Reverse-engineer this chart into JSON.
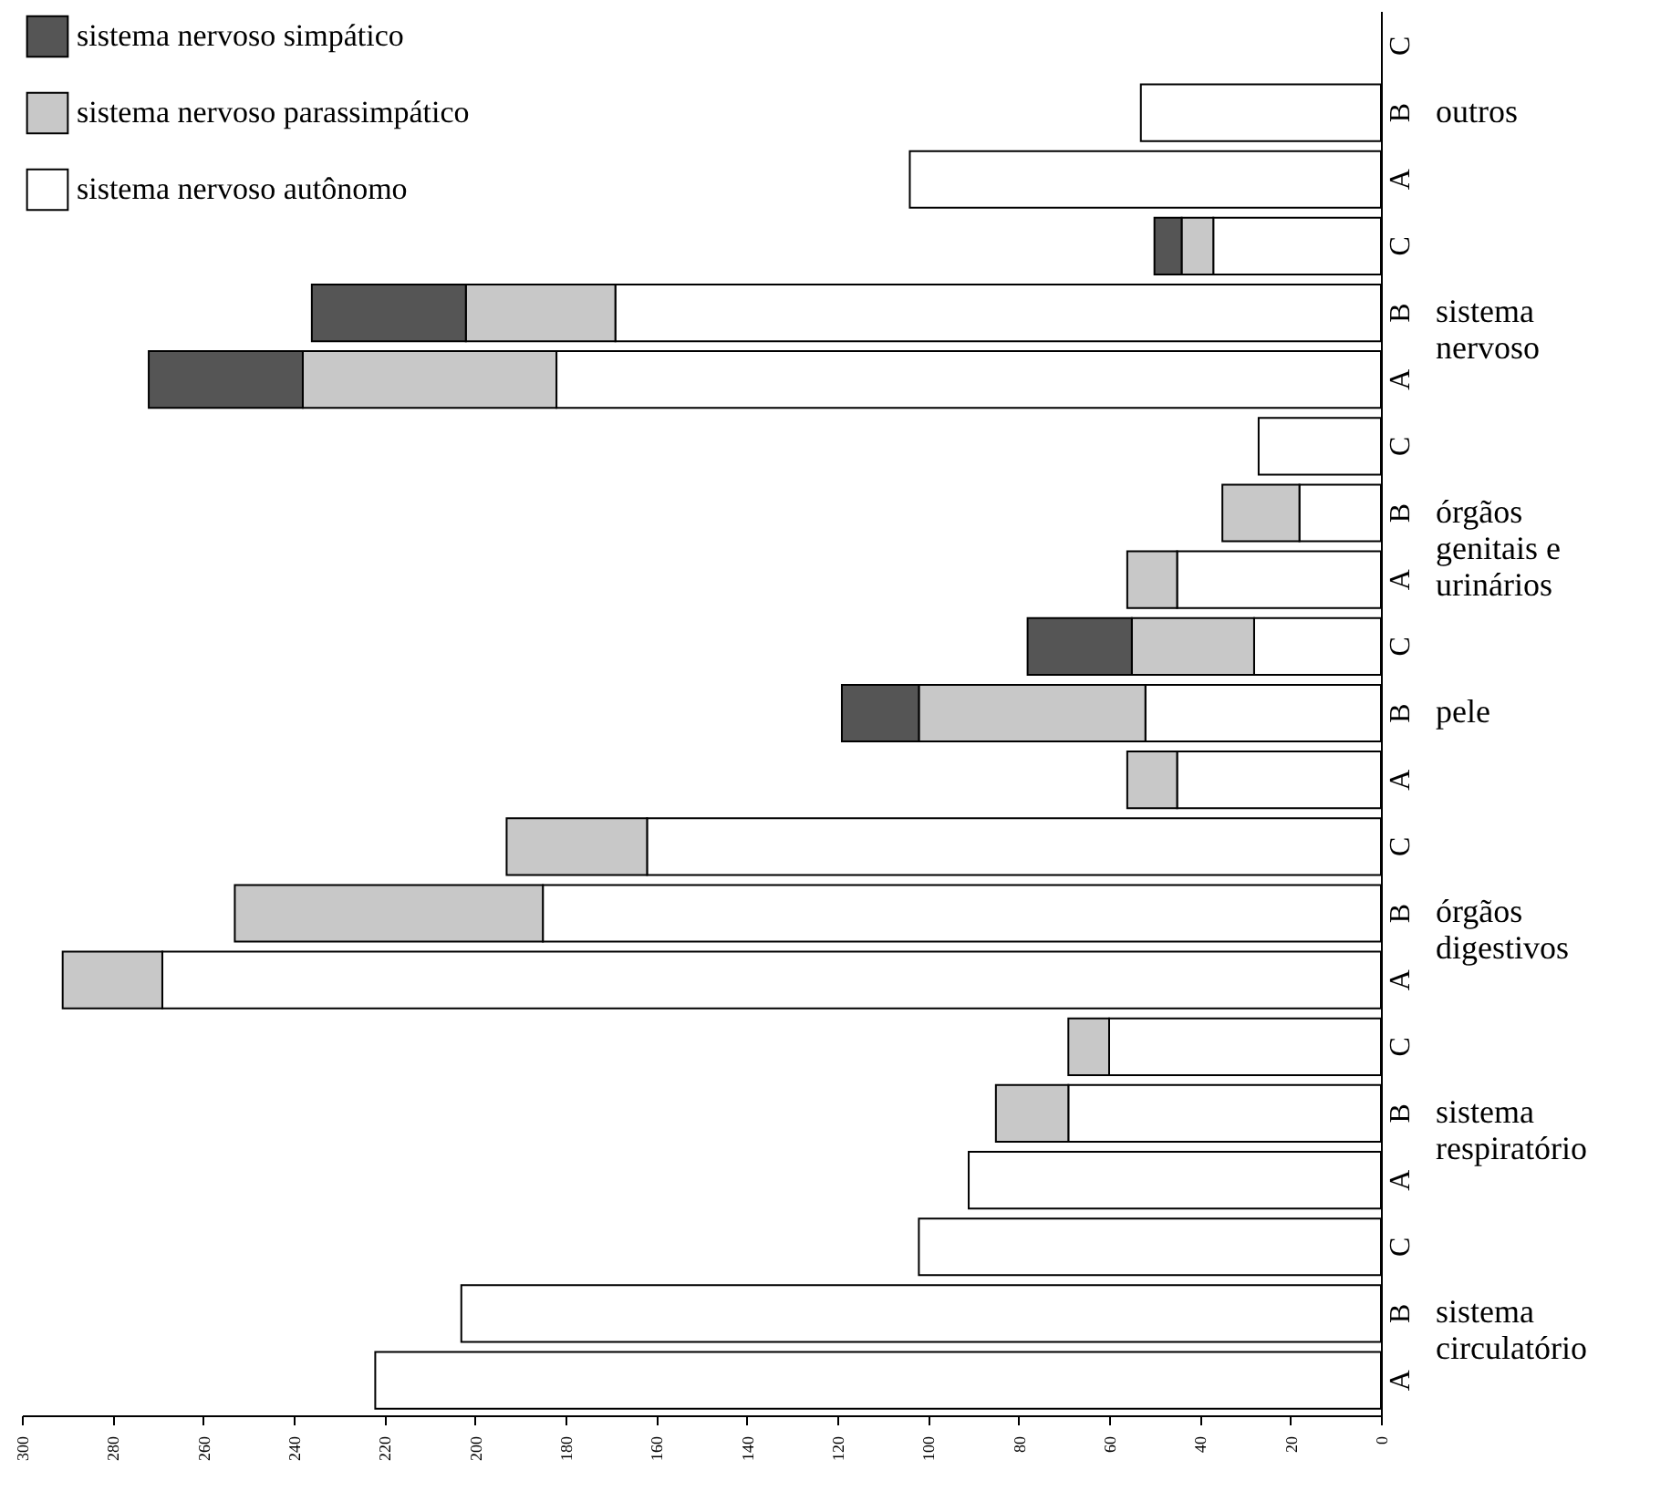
{
  "chart_data": {
    "type": "bar",
    "orientation": "horizontal",
    "stacked": true,
    "legend": "top left",
    "grid": false,
    "categories": [
      "C",
      "B",
      "A",
      "C",
      "B",
      "A",
      "C",
      "B",
      "A",
      "C",
      "B",
      "A",
      "C",
      "B",
      "A",
      "C",
      "B",
      "A",
      "C",
      "B",
      "A"
    ],
    "series": [
      {
        "name": "sistema nervoso autônomo",
        "color": "#ffffff",
        "values": [
          null,
          53,
          104,
          37,
          169,
          182,
          27,
          18,
          45,
          28,
          52,
          45,
          162,
          185,
          269,
          60,
          69,
          91,
          102,
          203,
          222
        ]
      },
      {
        "name": "sistema nervoso parassimpático",
        "color": "#c8c8c8",
        "values": [
          null,
          null,
          null,
          7,
          33,
          56,
          null,
          17,
          11,
          27,
          50,
          11,
          31,
          68,
          22,
          9,
          16,
          null,
          null,
          null,
          null
        ]
      },
      {
        "name": "sistema nervoso simpático",
        "color": "#555555",
        "values": [
          null,
          null,
          null,
          6,
          34,
          34,
          null,
          null,
          null,
          23,
          17,
          null,
          null,
          null,
          null,
          null,
          null,
          null,
          null,
          null,
          null
        ]
      }
    ],
    "xlim": [
      300,
      0
    ],
    "xticks": [
      0,
      20,
      40,
      60,
      80,
      100,
      120,
      140,
      160,
      180,
      200,
      220,
      240,
      260,
      280,
      300
    ],
    "annotations": [
      "outros",
      "sistema\nnervoso",
      "órgãos\ngenitais e\nurinários",
      "pele",
      "órgãos\ndigestivos",
      "sistema\nrespiratório",
      "sistema\ncirculatório"
    ]
  }
}
